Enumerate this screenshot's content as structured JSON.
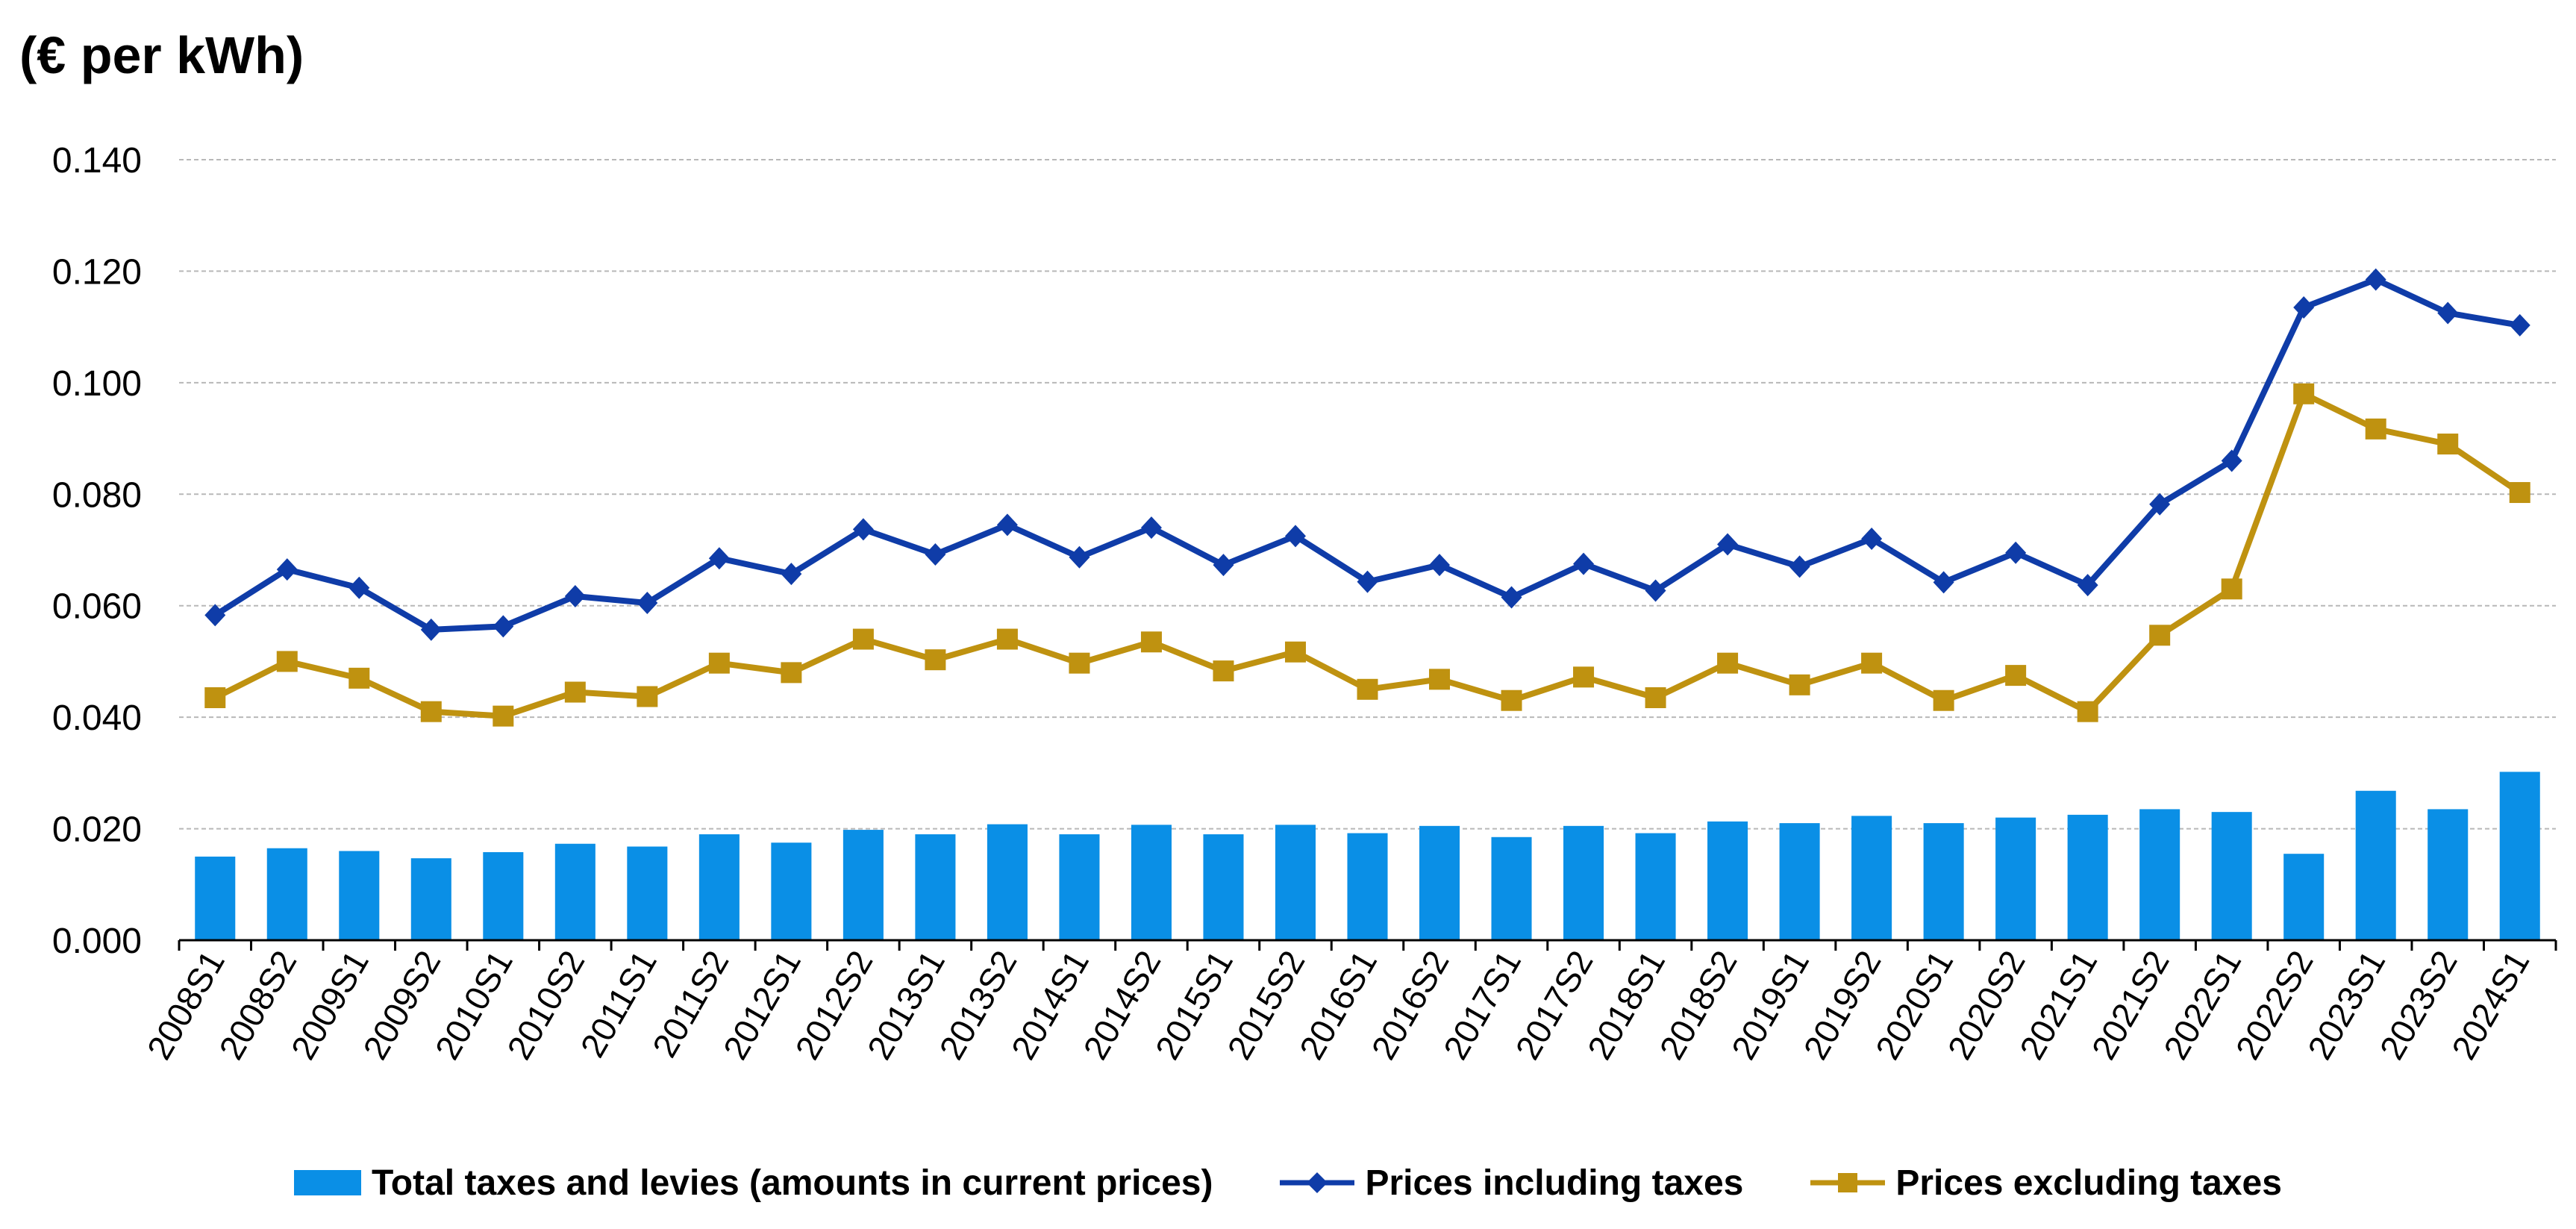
{
  "chart_data": {
    "type": "bar",
    "unit_label": "(€ per kWh)",
    "categories": [
      "2008S1",
      "2008S2",
      "2009S1",
      "2009S2",
      "2010S1",
      "2010S2",
      "2011S1",
      "2011S2",
      "2012S1",
      "2012S2",
      "2013S1",
      "2013S2",
      "2014S1",
      "2014S2",
      "2015S1",
      "2015S2",
      "2016S1",
      "2016S2",
      "2017S1",
      "2017S2",
      "2018S1",
      "2018S2",
      "2019S1",
      "2019S2",
      "2020S1",
      "2020S2",
      "2021S1",
      "2021S2",
      "2022S1",
      "2022S2",
      "2023S1",
      "2023S2",
      "2024S1"
    ],
    "ylim": [
      0,
      0.14
    ],
    "y_ticks": [
      "0.000",
      "0.020",
      "0.040",
      "0.060",
      "0.080",
      "0.100",
      "0.120",
      "0.140"
    ],
    "grid": true,
    "series": [
      {
        "name": "Total taxes and levies (amounts in current prices)",
        "type": "bar",
        "color": "#0a8fe6",
        "values": [
          0.015,
          0.0165,
          0.016,
          0.0147,
          0.0158,
          0.0173,
          0.0168,
          0.019,
          0.0175,
          0.0198,
          0.019,
          0.0208,
          0.019,
          0.0207,
          0.019,
          0.0207,
          0.0192,
          0.0205,
          0.0185,
          0.0205,
          0.0192,
          0.0213,
          0.021,
          0.0223,
          0.021,
          0.022,
          0.0225,
          0.0235,
          0.023,
          0.0155,
          0.0268,
          0.0235,
          0.0302
        ]
      },
      {
        "name": "Prices including taxes",
        "type": "line",
        "marker": "diamond",
        "color": "#0f3ca8",
        "values": [
          0.0583,
          0.0665,
          0.0632,
          0.0557,
          0.0563,
          0.0617,
          0.0605,
          0.0685,
          0.0657,
          0.0737,
          0.0692,
          0.0745,
          0.0687,
          0.074,
          0.0673,
          0.0725,
          0.0643,
          0.0673,
          0.0615,
          0.0675,
          0.0627,
          0.071,
          0.067,
          0.072,
          0.0642,
          0.0695,
          0.0637,
          0.0782,
          0.086,
          0.1135,
          0.1185,
          0.1125,
          0.1103
        ]
      },
      {
        "name": "Prices excluding taxes",
        "type": "line",
        "marker": "square",
        "color": "#bf9210",
        "values": [
          0.0435,
          0.05,
          0.047,
          0.041,
          0.0402,
          0.0445,
          0.0437,
          0.0497,
          0.048,
          0.054,
          0.0503,
          0.054,
          0.0497,
          0.0535,
          0.0483,
          0.0517,
          0.045,
          0.0468,
          0.043,
          0.0472,
          0.0435,
          0.0497,
          0.0458,
          0.0497,
          0.043,
          0.0475,
          0.041,
          0.0547,
          0.063,
          0.098,
          0.0917,
          0.089,
          0.0803
        ]
      }
    ]
  }
}
